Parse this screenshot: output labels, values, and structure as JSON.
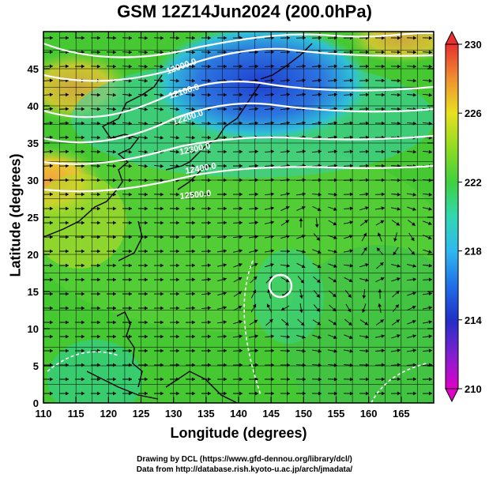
{
  "title": "GSM 12Z14Jun2024 (200.0hPa)",
  "chart_data": {
    "type": "heatmap",
    "xlabel": "Longitude (degrees)",
    "ylabel": "Latitude  (degrees)",
    "xlim": [
      110,
      170
    ],
    "ylim": [
      0,
      50
    ],
    "x_ticks": [
      "110",
      "115",
      "120",
      "125",
      "130",
      "135",
      "140",
      "145",
      "150",
      "155",
      "160",
      "165"
    ],
    "y_ticks": [
      "0",
      "5",
      "10",
      "15",
      "20",
      "25",
      "30",
      "35",
      "40",
      "45"
    ],
    "colorbar": {
      "ticks": [
        "210",
        "214",
        "218",
        "222",
        "226",
        "230"
      ],
      "range": [
        210,
        230
      ]
    },
    "contour_labels": [
      "12000.0",
      "12100.0",
      "12200.0",
      "12300.0",
      "12400.0",
      "12500.0"
    ],
    "grid": true
  },
  "credits": {
    "line1": "Drawing by DCL (https://www.gfd-dennou.org/library/dcl/)",
    "line2": "Data from http://database.rish.kyoto-u.ac.jp/arch/jmadata/"
  },
  "colors": {
    "warm": "#f5a040",
    "green": "#46c832",
    "cyan": "#30d2c8",
    "blue": "#2a4ed2"
  }
}
